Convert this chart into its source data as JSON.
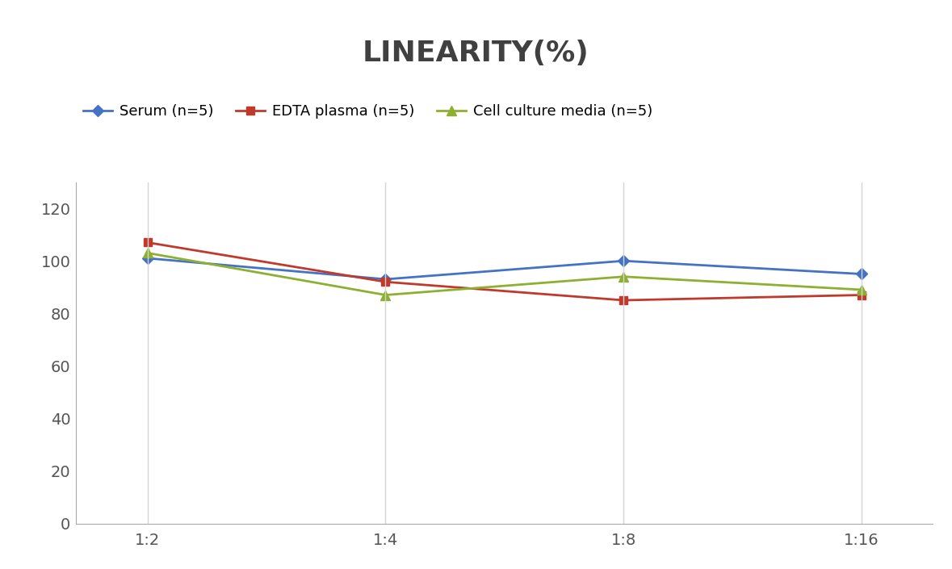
{
  "title": "LINEARITY(%)",
  "x_labels": [
    "1:2",
    "1:4",
    "1:8",
    "1:16"
  ],
  "x_positions": [
    0,
    1,
    2,
    3
  ],
  "series": [
    {
      "label": "Serum (n=5)",
      "values": [
        101,
        93,
        100,
        95
      ],
      "color": "#4472C4",
      "marker": "D",
      "marker_size": 7,
      "linewidth": 2
    },
    {
      "label": "EDTA plasma (n=5)",
      "values": [
        107,
        92,
        85,
        87
      ],
      "color": "#C0392B",
      "marker": "s",
      "marker_size": 7,
      "linewidth": 2
    },
    {
      "label": "Cell culture media (n=5)",
      "values": [
        103,
        87,
        94,
        89
      ],
      "color": "#8DB030",
      "marker": "^",
      "marker_size": 8,
      "linewidth": 2
    }
  ],
  "ylim": [
    0,
    130
  ],
  "yticks": [
    0,
    20,
    40,
    60,
    80,
    100,
    120
  ],
  "background_color": "#FFFFFF",
  "grid_color": "#D5D5D5",
  "title_fontsize": 26,
  "title_color": "#404040",
  "legend_fontsize": 13,
  "tick_fontsize": 14,
  "tick_color": "#555555"
}
